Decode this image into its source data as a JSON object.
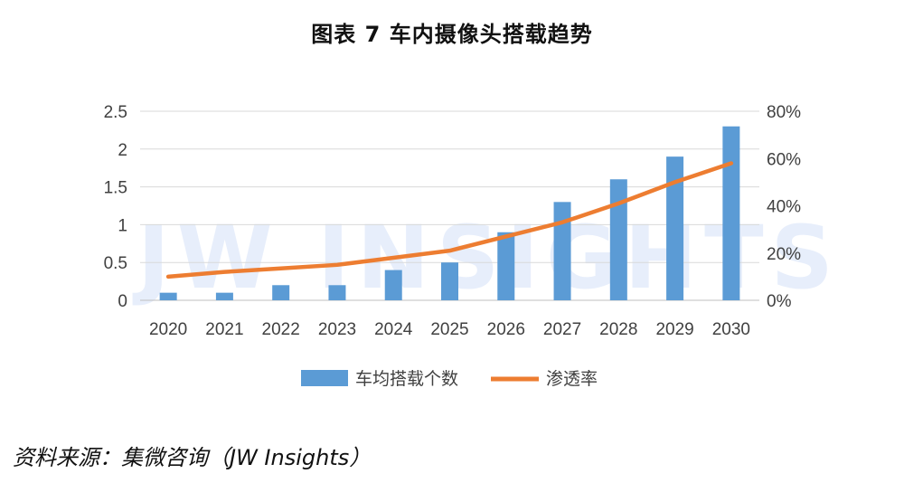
{
  "title": "图表 7  车内摄像头搭载趋势",
  "source": "资料来源：集微咨询（JW Insights）",
  "watermark": "JW INSIGHTS",
  "colors": {
    "bar": "#5b9bd5",
    "line": "#ed7d31",
    "grid": "#d9d9d9",
    "axis": "#bfbfbf"
  },
  "chart_data": {
    "type": "bar+line",
    "title": "图表 7  车内摄像头搭载趋势",
    "categories": [
      "2020",
      "2021",
      "2022",
      "2023",
      "2024",
      "2025",
      "2026",
      "2027",
      "2028",
      "2029",
      "2030"
    ],
    "series": [
      {
        "name": "车均搭载个数",
        "type": "bar",
        "axis": "left",
        "values": [
          0.1,
          0.1,
          0.2,
          0.2,
          0.4,
          0.5,
          0.9,
          1.3,
          1.6,
          1.9,
          2.3
        ]
      },
      {
        "name": "渗透率",
        "type": "line",
        "axis": "right",
        "values": [
          0.1,
          0.12,
          0.135,
          0.15,
          0.18,
          0.21,
          0.27,
          0.33,
          0.41,
          0.5,
          0.58
        ]
      }
    ],
    "y_left": {
      "min": 0,
      "max": 2.5,
      "ticks": [
        "0",
        "0.5",
        "1",
        "1.5",
        "2",
        "2.5"
      ],
      "tick_values": [
        0,
        0.5,
        1,
        1.5,
        2,
        2.5
      ]
    },
    "y_right": {
      "min": 0,
      "max": 0.8,
      "ticks": [
        "0%",
        "20%",
        "40%",
        "60%",
        "80%"
      ],
      "tick_values": [
        0,
        0.2,
        0.4,
        0.6,
        0.8
      ]
    },
    "grid": true,
    "legend": "bottom"
  }
}
